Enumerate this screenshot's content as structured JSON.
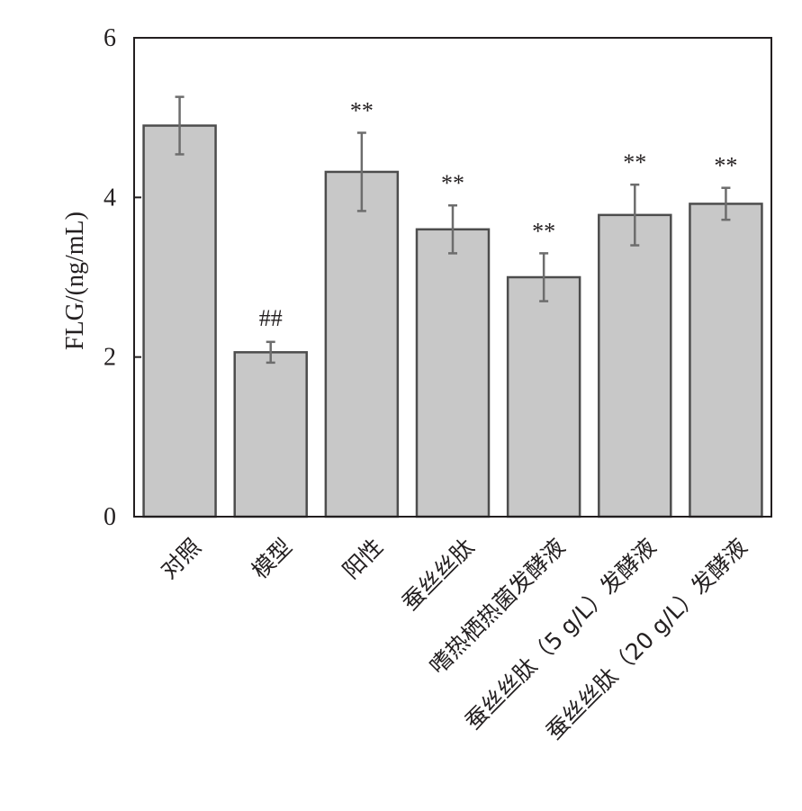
{
  "chart_data": {
    "type": "bar",
    "title": "",
    "ylabel": "FLG/(ng/mL)",
    "xlabel": "",
    "ylim": [
      0,
      6
    ],
    "yticks": [
      "0",
      "2",
      "4",
      "6"
    ],
    "grid": false,
    "categories": [
      "对照",
      "模型",
      "阳性",
      "蚕丝丝肽",
      "嗜热栖热菌发酵液",
      "蚕丝丝肽（5 g/L）发酵液",
      "蚕丝丝肽（20 g/L）发酵液"
    ],
    "values": [
      4.9,
      2.06,
      4.32,
      3.6,
      3.0,
      3.78,
      3.92
    ],
    "errors": [
      0.36,
      0.13,
      0.49,
      0.3,
      0.3,
      0.38,
      0.2
    ],
    "annotations": [
      "",
      "##",
      "**",
      "**",
      "**",
      "**",
      "**"
    ],
    "colors": {
      "bar_fill": "#c8c8c8",
      "bar_stroke": "#4d4d4d",
      "error_bar": "#6d6d6d",
      "axis": "#231f20",
      "text": "#231f20"
    }
  }
}
